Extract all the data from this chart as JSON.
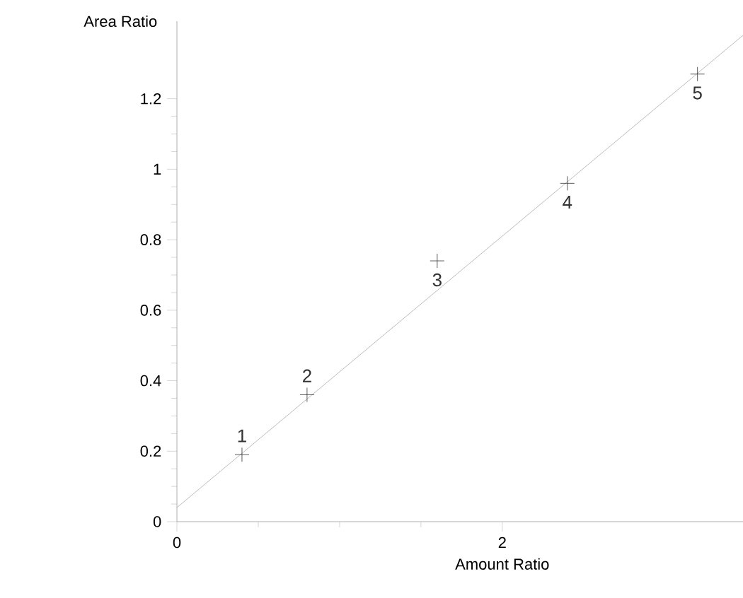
{
  "chart_data": {
    "type": "scatter",
    "xlabel": "Amount Ratio",
    "ylabel": "Area Ratio",
    "xlim": [
      0,
      3.48
    ],
    "ylim": [
      0,
      1.42
    ],
    "xticks": [
      0,
      2
    ],
    "yticks": [
      0,
      0.2,
      0.4,
      0.6,
      0.8,
      1,
      1.2
    ],
    "grid": false,
    "series": [
      {
        "marker": "cross",
        "color": "#333333",
        "x": [
          0.4,
          0.8,
          1.6,
          2.4,
          3.2
        ],
        "values": [
          0.19,
          0.36,
          0.74,
          0.96,
          1.27
        ]
      },
      {
        "type": "line",
        "marker": "none",
        "color": "#aaaaaa",
        "x": [
          0,
          3.48
        ],
        "values": [
          0.04,
          1.38
        ]
      }
    ],
    "annotations": [
      {
        "text": "1",
        "x": 0.4,
        "y": 0.19
      },
      {
        "text": "2",
        "x": 0.8,
        "y": 0.36
      },
      {
        "text": "3",
        "x": 1.6,
        "y": 0.74
      },
      {
        "text": "4",
        "x": 2.4,
        "y": 0.96
      },
      {
        "text": "5",
        "x": 3.2,
        "y": 1.27
      }
    ]
  }
}
